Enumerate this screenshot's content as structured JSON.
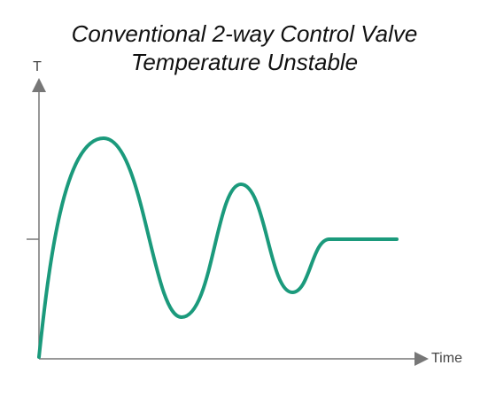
{
  "title": {
    "line1": "Conventional 2-way Control Valve",
    "line2": "Temperature Unstable"
  },
  "axes": {
    "y_label": "T",
    "x_label": "Time"
  }
}
